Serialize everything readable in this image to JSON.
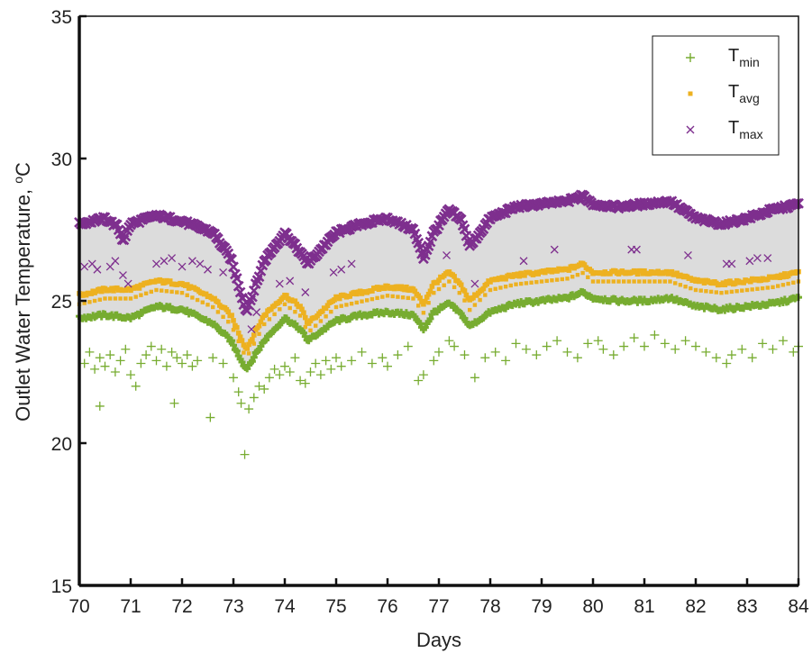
{
  "chart_data": {
    "type": "scatter",
    "xlabel": "Days",
    "ylabel": "Outlet Water Temperature, °C",
    "ylabel_main": "Outlet Water Temperature, ",
    "ylabel_sup": "o",
    "ylabel_unit": "C",
    "xlim": [
      70,
      84
    ],
    "ylim": [
      15,
      35
    ],
    "xticks": [
      70,
      71,
      72,
      73,
      74,
      75,
      76,
      77,
      78,
      79,
      80,
      81,
      82,
      83,
      84
    ],
    "yticks": [
      15,
      20,
      25,
      30,
      35
    ],
    "grid": false,
    "legend_position": "top-right",
    "band_color": "#dcdcdc",
    "series": [
      {
        "name": "T_min",
        "label_main": "T",
        "label_sub": "min",
        "marker": "plus",
        "color": "#77ac30",
        "trend_x": [
          70.0,
          70.5,
          71.0,
          71.5,
          72.0,
          72.6,
          72.95,
          73.25,
          73.6,
          74.0,
          74.3,
          74.45,
          75.0,
          75.5,
          76.0,
          76.5,
          76.7,
          76.9,
          77.2,
          77.45,
          77.6,
          78.0,
          78.5,
          79.0,
          79.5,
          79.8,
          80.0,
          80.5,
          81.0,
          81.5,
          82.0,
          82.5,
          83.0,
          83.5,
          84.0
        ],
        "trend_y": [
          24.4,
          24.5,
          24.4,
          24.8,
          24.7,
          24.2,
          23.6,
          22.6,
          23.6,
          24.4,
          24.0,
          23.6,
          24.3,
          24.5,
          24.6,
          24.5,
          24.0,
          24.6,
          24.9,
          24.5,
          24.1,
          24.6,
          24.9,
          25.0,
          25.1,
          25.3,
          25.1,
          25.0,
          25.0,
          25.1,
          24.8,
          24.7,
          24.8,
          24.9,
          25.1
        ],
        "scatter_points": [
          [
            70.1,
            22.8
          ],
          [
            70.2,
            23.2
          ],
          [
            70.3,
            22.6
          ],
          [
            70.4,
            23.0
          ],
          [
            70.5,
            22.7
          ],
          [
            70.4,
            21.3
          ],
          [
            70.6,
            23.1
          ],
          [
            70.7,
            22.5
          ],
          [
            70.8,
            22.9
          ],
          [
            70.9,
            23.3
          ],
          [
            71.0,
            22.4
          ],
          [
            71.1,
            22.0
          ],
          [
            71.2,
            22.8
          ],
          [
            71.3,
            23.1
          ],
          [
            71.4,
            23.4
          ],
          [
            71.5,
            22.9
          ],
          [
            71.6,
            23.3
          ],
          [
            71.7,
            22.7
          ],
          [
            71.8,
            23.2
          ],
          [
            71.9,
            23.0
          ],
          [
            72.0,
            22.8
          ],
          [
            72.1,
            23.1
          ],
          [
            72.2,
            22.7
          ],
          [
            72.3,
            22.9
          ],
          [
            72.55,
            20.9
          ],
          [
            71.85,
            21.4
          ],
          [
            72.6,
            23.0
          ],
          [
            72.8,
            22.8
          ],
          [
            73.0,
            22.3
          ],
          [
            73.1,
            21.8
          ],
          [
            73.15,
            21.4
          ],
          [
            73.22,
            19.6
          ],
          [
            73.3,
            21.2
          ],
          [
            73.4,
            21.6
          ],
          [
            73.5,
            22.0
          ],
          [
            73.6,
            21.9
          ],
          [
            73.7,
            22.3
          ],
          [
            73.8,
            22.6
          ],
          [
            73.9,
            22.4
          ],
          [
            74.0,
            22.7
          ],
          [
            74.1,
            22.5
          ],
          [
            74.2,
            23.0
          ],
          [
            74.3,
            22.2
          ],
          [
            74.4,
            22.1
          ],
          [
            74.5,
            22.5
          ],
          [
            74.6,
            22.8
          ],
          [
            74.7,
            22.4
          ],
          [
            74.8,
            22.9
          ],
          [
            74.9,
            22.6
          ],
          [
            75.0,
            23.0
          ],
          [
            75.1,
            22.7
          ],
          [
            75.3,
            22.9
          ],
          [
            75.5,
            23.2
          ],
          [
            75.7,
            22.8
          ],
          [
            75.9,
            23.0
          ],
          [
            76.0,
            22.7
          ],
          [
            76.2,
            23.1
          ],
          [
            76.4,
            23.4
          ],
          [
            76.6,
            22.2
          ],
          [
            76.7,
            22.4
          ],
          [
            76.9,
            22.9
          ],
          [
            77.0,
            23.2
          ],
          [
            77.2,
            23.6
          ],
          [
            77.3,
            23.4
          ],
          [
            77.5,
            23.1
          ],
          [
            77.7,
            22.3
          ],
          [
            77.9,
            23.0
          ],
          [
            78.1,
            23.2
          ],
          [
            78.3,
            22.9
          ],
          [
            78.5,
            23.5
          ],
          [
            78.7,
            23.3
          ],
          [
            78.9,
            23.1
          ],
          [
            79.1,
            23.4
          ],
          [
            79.3,
            23.6
          ],
          [
            79.5,
            23.2
          ],
          [
            79.7,
            23.0
          ],
          [
            79.9,
            23.5
          ],
          [
            80.1,
            23.6
          ],
          [
            80.2,
            23.3
          ],
          [
            80.4,
            23.1
          ],
          [
            80.6,
            23.4
          ],
          [
            80.8,
            23.7
          ],
          [
            81.0,
            23.4
          ],
          [
            81.2,
            23.8
          ],
          [
            81.4,
            23.5
          ],
          [
            81.6,
            23.3
          ],
          [
            81.8,
            23.6
          ],
          [
            82.0,
            23.4
          ],
          [
            82.2,
            23.2
          ],
          [
            82.4,
            23.0
          ],
          [
            82.6,
            22.8
          ],
          [
            82.7,
            23.1
          ],
          [
            82.9,
            23.3
          ],
          [
            83.1,
            23.0
          ],
          [
            83.3,
            23.5
          ],
          [
            83.5,
            23.3
          ],
          [
            83.7,
            23.6
          ],
          [
            83.9,
            23.2
          ],
          [
            84.0,
            23.4
          ]
        ]
      },
      {
        "name": "T_avg",
        "label_main": "T",
        "label_sub": "avg",
        "marker": "dot",
        "color": "#edb120",
        "trend_x": [
          70.0,
          70.5,
          71.0,
          71.5,
          72.0,
          72.6,
          72.95,
          73.25,
          73.6,
          74.0,
          74.3,
          74.45,
          75.0,
          75.5,
          76.0,
          76.5,
          76.7,
          76.9,
          77.2,
          77.45,
          77.6,
          78.0,
          78.5,
          79.0,
          79.5,
          79.8,
          80.0,
          80.5,
          81.0,
          81.5,
          82.0,
          82.5,
          83.0,
          83.5,
          84.0
        ],
        "trend_y": [
          25.2,
          25.4,
          25.4,
          25.7,
          25.6,
          25.1,
          24.5,
          23.3,
          24.5,
          25.2,
          24.8,
          24.2,
          25.1,
          25.3,
          25.5,
          25.4,
          24.9,
          25.6,
          26.0,
          25.5,
          25.0,
          25.7,
          25.9,
          26.0,
          26.1,
          26.3,
          26.0,
          26.0,
          26.0,
          26.0,
          25.7,
          25.6,
          25.7,
          25.8,
          26.0
        ],
        "scatter_points": []
      },
      {
        "name": "T_max",
        "label_main": "T",
        "label_sub": "max",
        "marker": "x",
        "color": "#7e2f8e",
        "trend_x": [
          70.0,
          70.5,
          70.75,
          70.85,
          71.0,
          71.5,
          72.0,
          72.6,
          72.95,
          73.25,
          73.6,
          74.0,
          74.3,
          74.45,
          75.0,
          75.5,
          76.0,
          76.5,
          76.7,
          76.9,
          77.2,
          77.45,
          77.6,
          78.0,
          78.5,
          79.0,
          79.5,
          79.8,
          80.0,
          80.5,
          81.0,
          81.5,
          82.0,
          82.5,
          83.0,
          83.5,
          84.0
        ],
        "trend_y": [
          27.7,
          27.9,
          27.6,
          27.1,
          27.7,
          28.0,
          27.8,
          27.4,
          26.5,
          24.6,
          26.4,
          27.4,
          26.7,
          26.3,
          27.4,
          27.7,
          27.9,
          27.5,
          26.5,
          27.4,
          28.2,
          27.8,
          26.9,
          27.9,
          28.3,
          28.4,
          28.5,
          28.7,
          28.4,
          28.3,
          28.4,
          28.5,
          27.9,
          27.7,
          27.9,
          28.2,
          28.4
        ],
        "scatter_points": [
          [
            70.1,
            26.2
          ],
          [
            70.25,
            26.3
          ],
          [
            70.35,
            26.1
          ],
          [
            70.6,
            26.2
          ],
          [
            70.7,
            26.4
          ],
          [
            70.85,
            25.9
          ],
          [
            70.95,
            25.6
          ],
          [
            71.5,
            26.3
          ],
          [
            71.65,
            26.4
          ],
          [
            71.8,
            26.5
          ],
          [
            72.0,
            26.2
          ],
          [
            72.2,
            26.4
          ],
          [
            72.35,
            26.3
          ],
          [
            72.5,
            26.1
          ],
          [
            72.8,
            26.0
          ],
          [
            73.2,
            25.1
          ],
          [
            73.35,
            24.0
          ],
          [
            73.45,
            24.6
          ],
          [
            73.9,
            25.6
          ],
          [
            74.1,
            25.7
          ],
          [
            74.4,
            25.3
          ],
          [
            74.95,
            26.0
          ],
          [
            75.1,
            26.1
          ],
          [
            75.3,
            26.3
          ],
          [
            77.15,
            26.6
          ],
          [
            77.7,
            25.6
          ],
          [
            78.65,
            26.4
          ],
          [
            79.25,
            26.8
          ],
          [
            80.75,
            26.8
          ],
          [
            80.85,
            26.8
          ],
          [
            81.85,
            26.6
          ],
          [
            82.6,
            26.3
          ],
          [
            82.7,
            26.3
          ],
          [
            83.05,
            26.4
          ],
          [
            83.2,
            26.5
          ],
          [
            83.4,
            26.5
          ]
        ]
      }
    ]
  }
}
